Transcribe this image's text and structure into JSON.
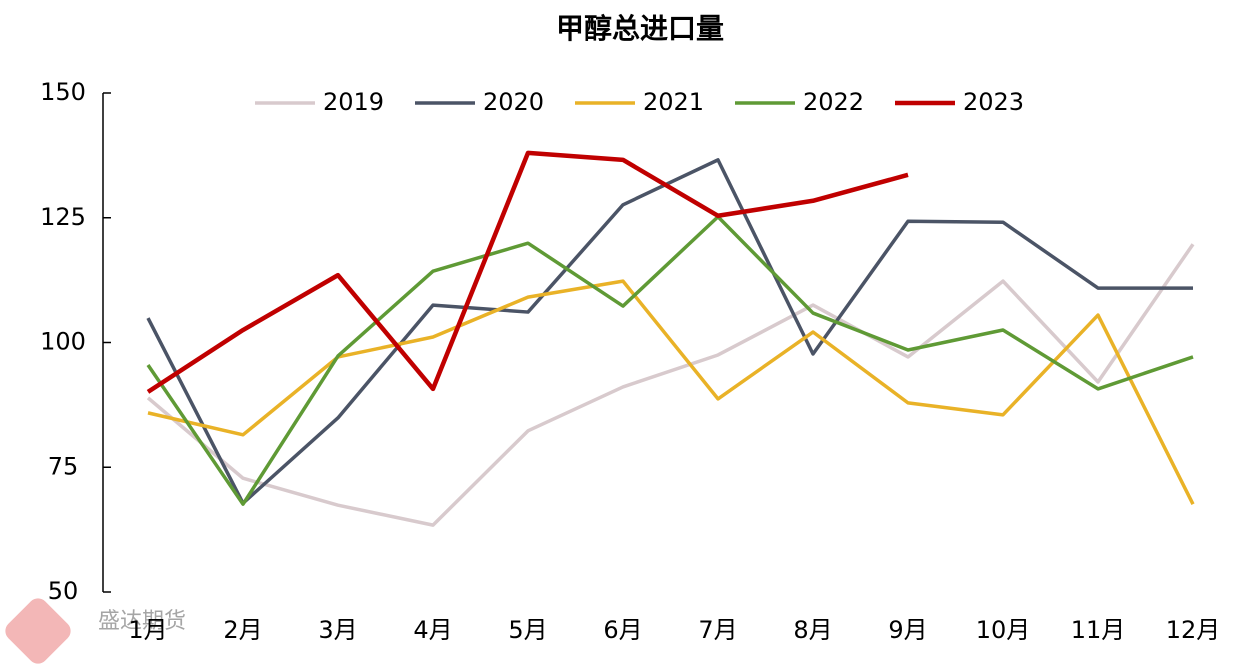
{
  "chart_data": {
    "type": "line",
    "title": "甲醇总进口量",
    "categories": [
      "1月",
      "2月",
      "3月",
      "4月",
      "5月",
      "6月",
      "7月",
      "8月",
      "9月",
      "10月",
      "11月",
      "12月"
    ],
    "series": [
      {
        "name": "2019",
        "color": "#d8cacd",
        "values": [
          88.9,
          72.8,
          67.4,
          63.4,
          82.3,
          91.1,
          97.5,
          107.5,
          97.1,
          112.3,
          92.1,
          119.7
        ]
      },
      {
        "name": "2020",
        "color": "#4b5466",
        "values": [
          104.9,
          67.8,
          84.9,
          107.5,
          106.1,
          127.6,
          136.6,
          97.7,
          124.3,
          124.1,
          110.9,
          110.9
        ]
      },
      {
        "name": "2021",
        "color": "#e9b227",
        "values": [
          85.9,
          81.5,
          97.1,
          101.1,
          109.1,
          112.3,
          88.7,
          102.1,
          87.9,
          85.5,
          105.5,
          67.6
        ]
      },
      {
        "name": "2022",
        "color": "#5f9a35",
        "values": [
          95.5,
          67.6,
          97.3,
          114.3,
          119.9,
          107.3,
          125.2,
          105.9,
          98.5,
          102.5,
          90.7,
          97.1
        ]
      },
      {
        "name": "2023",
        "color": "#c00000",
        "values": [
          90.1,
          102.5,
          113.5,
          90.7,
          138.0,
          136.6,
          125.4,
          128.4,
          133.6,
          null,
          null,
          null
        ]
      }
    ],
    "ylim": [
      50,
      150
    ],
    "yticks": [
      50,
      75,
      100,
      125,
      150
    ],
    "legend": "top",
    "watermark": "盛达期货"
  }
}
